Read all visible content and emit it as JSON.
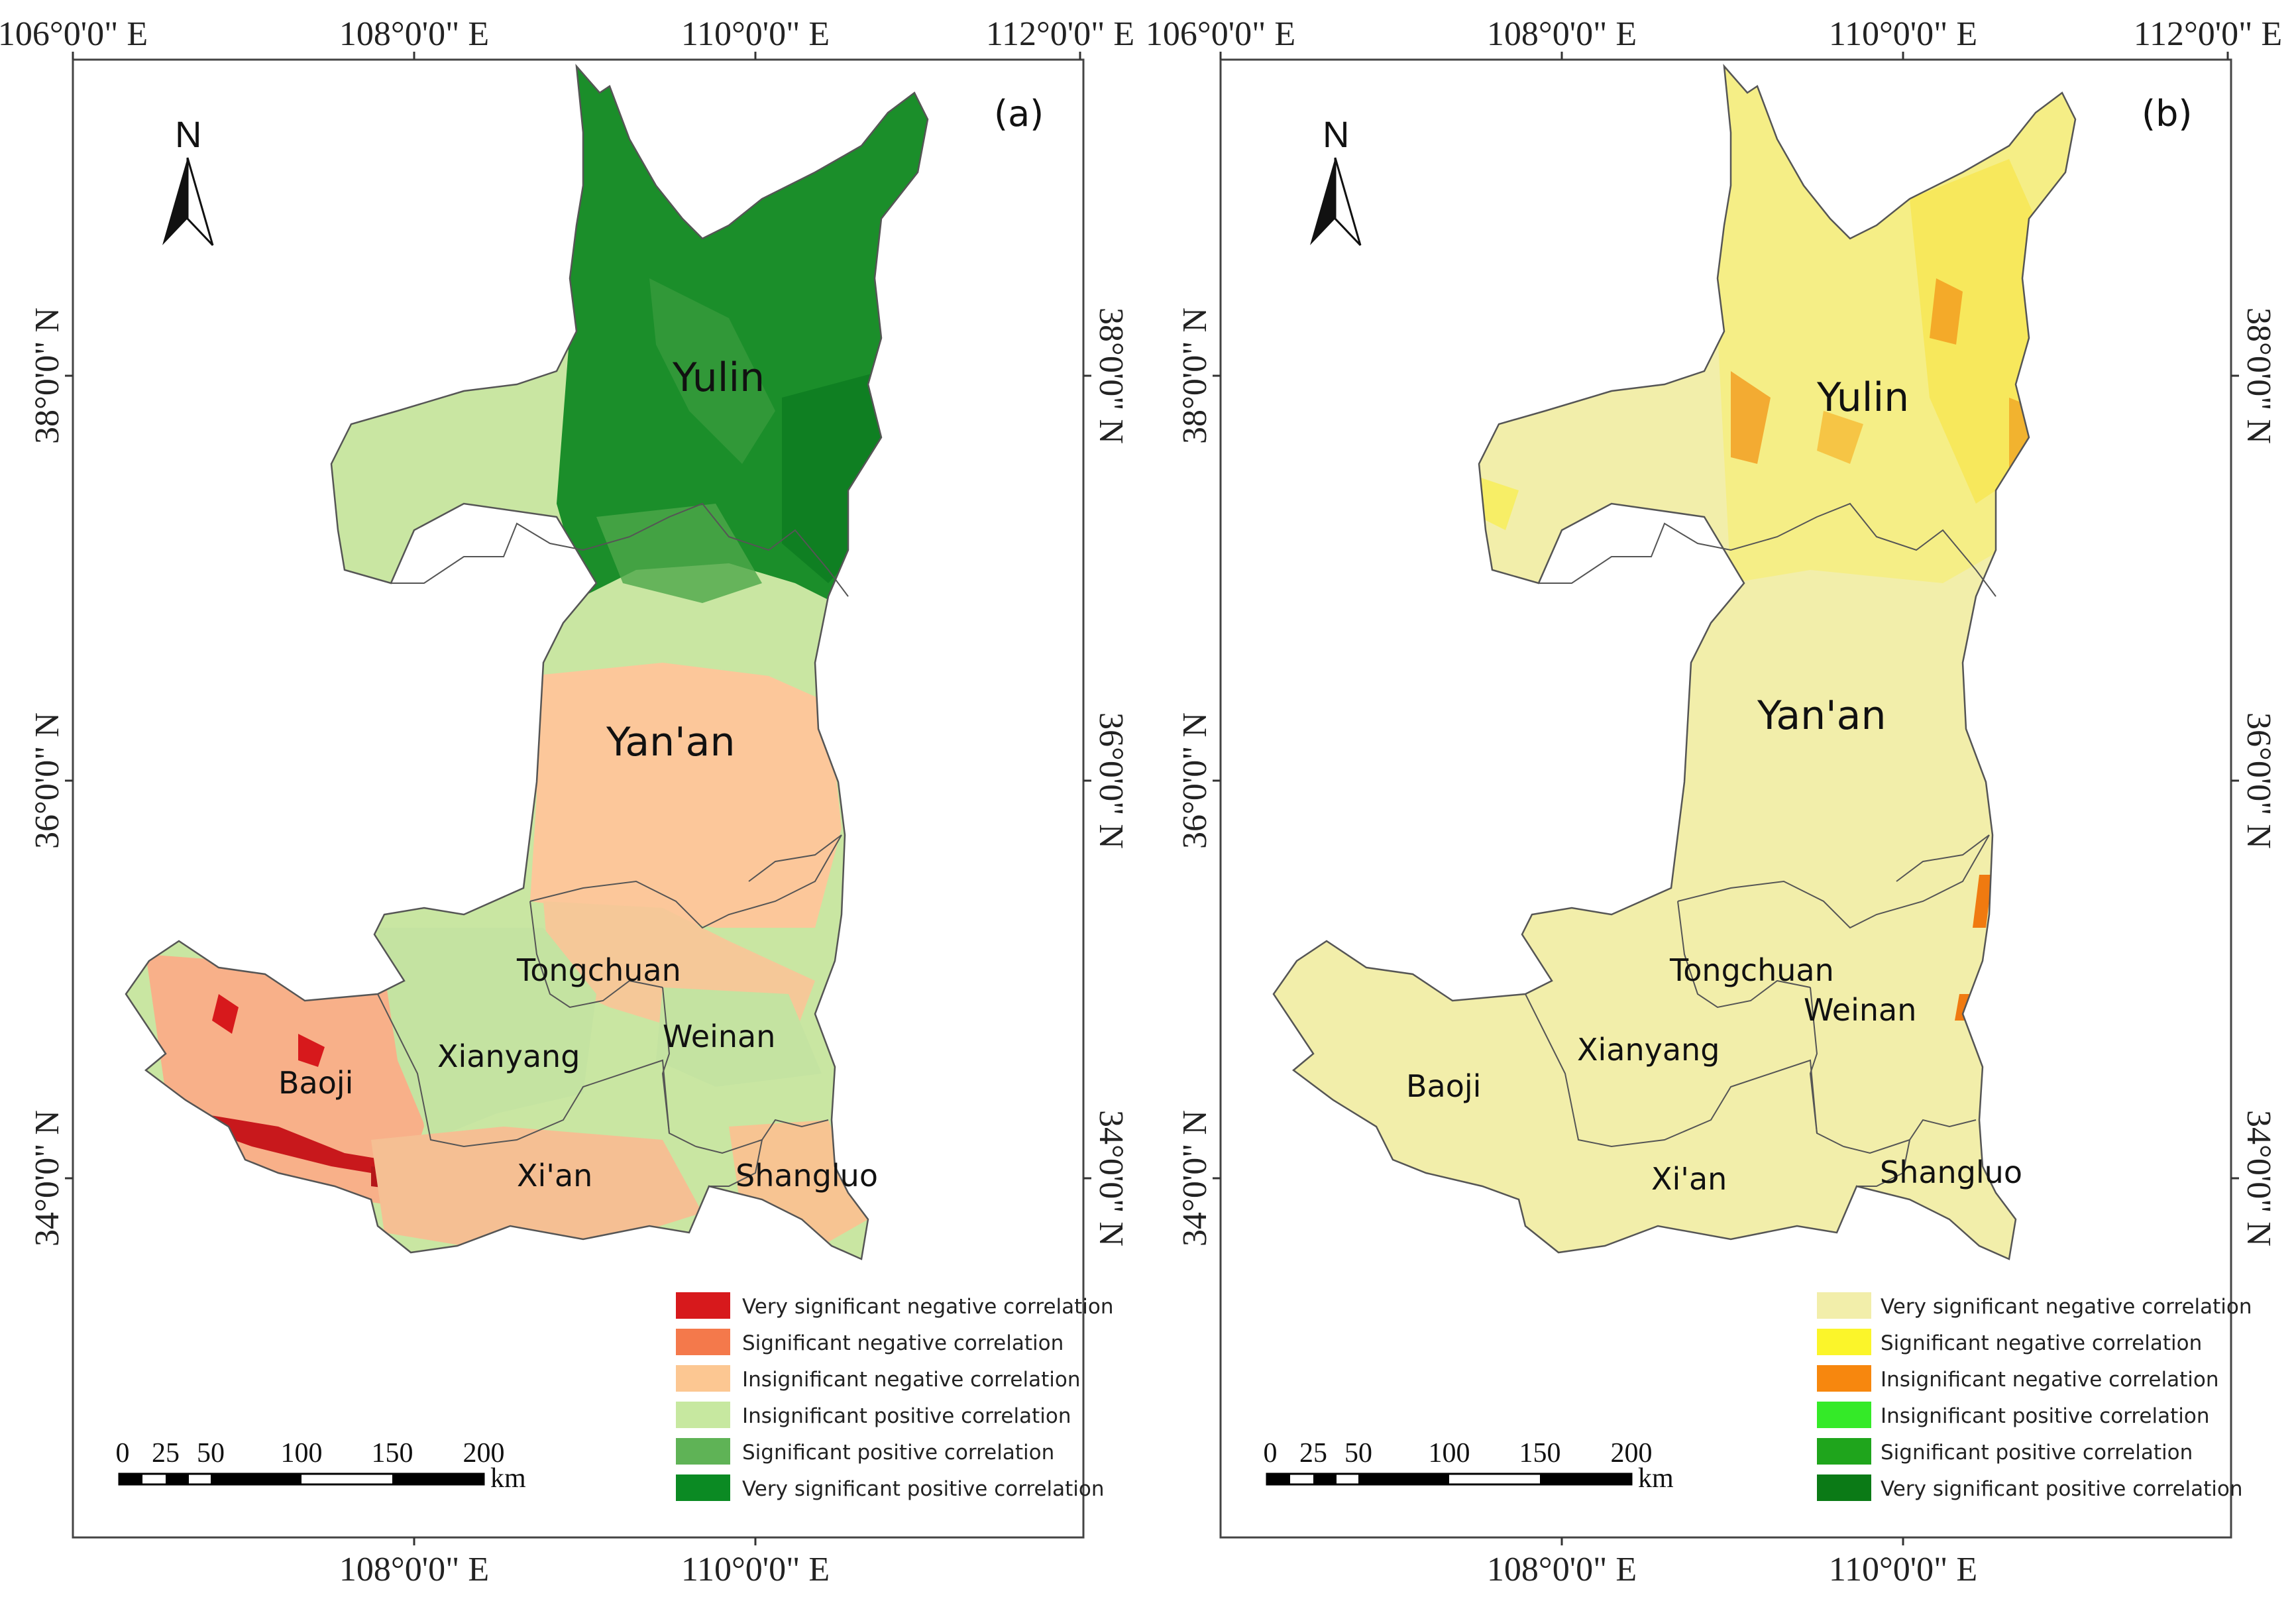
{
  "panels": [
    {
      "id": "a",
      "label": "(a)",
      "top_lon_labels": [
        "106°0'0\" E",
        "108°0'0\" E",
        "110°0'0\" E",
        "112°0'0\" E"
      ],
      "bottom_lon_labels": [
        "108°0'0\" E",
        "110°0'0\" E"
      ],
      "lat_labels": [
        "38°0'0\" N",
        "36°0'0\" N",
        "34°0'0\" N"
      ],
      "north": "N",
      "cities": {
        "yulin": "Yulin",
        "yanan": "Yan'an",
        "tongchuan": "Tongchuan",
        "xianyang": "Xianyang",
        "weinan": "Weinan",
        "baoji": "Baoji",
        "xian": "Xi'an",
        "shangluo": "Shangluo"
      },
      "legend": [
        {
          "label": "Very significant negative correlation",
          "color": "#d7191c"
        },
        {
          "label": "Significant negative correlation",
          "color": "#f4794b"
        },
        {
          "label": "Insignificant negative correlation",
          "color": "#fcc792"
        },
        {
          "label": "Insignificant positive correlation",
          "color": "#c7e8a0"
        },
        {
          "label": "Significant positive correlation",
          "color": "#5fb356"
        },
        {
          "label": "Very significant positive correlation",
          "color": "#0b8a23"
        }
      ],
      "scale": {
        "ticks": [
          "0",
          "25",
          "50",
          "100",
          "150",
          "200"
        ],
        "unit": "km"
      }
    },
    {
      "id": "b",
      "label": "(b)",
      "top_lon_labels": [
        "106°0'0\" E",
        "108°0'0\" E",
        "110°0'0\" E",
        "112°0'0\" E"
      ],
      "bottom_lon_labels": [
        "108°0'0\" E",
        "110°0'0\" E"
      ],
      "lat_labels": [
        "38°0'0\" N",
        "36°0'0\" N",
        "34°0'0\" N"
      ],
      "north": "N",
      "cities": {
        "yulin": "Yulin",
        "yanan": "Yan'an",
        "tongchuan": "Tongchuan",
        "xianyang": "Xianyang",
        "weinan": "Weinan",
        "baoji": "Baoji",
        "xian": "Xi'an",
        "shangluo": "Shangluo"
      },
      "legend": [
        {
          "label": "Very significant negative correlation",
          "color": "#f2eeaa"
        },
        {
          "label": "Significant negative correlation",
          "color": "#fbf52a"
        },
        {
          "label": "Insignificant negative correlation",
          "color": "#f7870e"
        },
        {
          "label": "Insignificant positive correlation",
          "color": "#34ea28"
        },
        {
          "label": "Significant positive correlation",
          "color": "#1fa51c"
        },
        {
          "label": "Very significant positive correlation",
          "color": "#0b7a16"
        }
      ],
      "scale": {
        "ticks": [
          "0",
          "25",
          "50",
          "100",
          "150",
          "200"
        ],
        "unit": "km"
      }
    }
  ]
}
